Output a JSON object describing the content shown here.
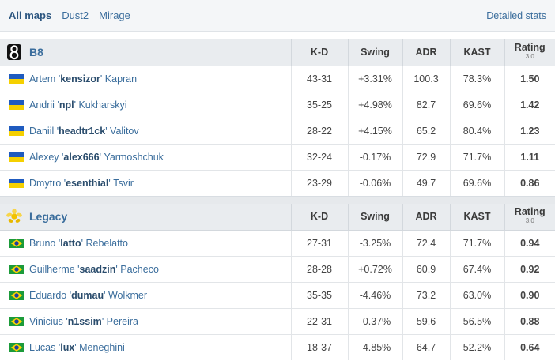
{
  "tabs": [
    {
      "label": "All maps",
      "active": true
    },
    {
      "label": "Dust2",
      "active": false
    },
    {
      "label": "Mirage",
      "active": false
    }
  ],
  "detailed_stats_label": "Detailed stats",
  "columns": {
    "kd": "K-D",
    "swing": "Swing",
    "adr": "ADR",
    "kast": "KAST",
    "rating": "Rating",
    "rating_version": "3.0"
  },
  "colors": {
    "positive": "#43a047",
    "negative": "#e03c3c",
    "link": "#3a6d9c",
    "rating_good": "#43a047",
    "rating_bad": "#d32f2f"
  },
  "teams": [
    {
      "name": "B8",
      "logo_icon": "b8-logo-icon",
      "players": [
        {
          "first": "Artem",
          "nick": "kensizor",
          "last": "Kapran",
          "flag": "ukraine-flag-icon",
          "kd": "43-31",
          "swing": "+3.31%",
          "swing_sign": "pos",
          "adr": "100.3",
          "kast": "78.3%",
          "rating": "1.50",
          "rating_class": "good"
        },
        {
          "first": "Andrii",
          "nick": "npl",
          "last": "Kukharskyi",
          "flag": "ukraine-flag-icon",
          "kd": "35-25",
          "swing": "+4.98%",
          "swing_sign": "pos",
          "adr": "82.7",
          "kast": "69.6%",
          "rating": "1.42",
          "rating_class": "good"
        },
        {
          "first": "Daniil",
          "nick": "headtr1ck",
          "last": "Valitov",
          "flag": "ukraine-flag-icon",
          "kd": "28-22",
          "swing": "+4.15%",
          "swing_sign": "pos",
          "adr": "65.2",
          "kast": "80.4%",
          "rating": "1.23",
          "rating_class": "good"
        },
        {
          "first": "Alexey",
          "nick": "alex666",
          "last": "Yarmoshchuk",
          "flag": "ukraine-flag-icon",
          "kd": "32-24",
          "swing": "-0.17%",
          "swing_sign": "neu",
          "adr": "72.9",
          "kast": "71.7%",
          "rating": "1.11",
          "rating_class": "good"
        },
        {
          "first": "Dmytro",
          "nick": "esenthial",
          "last": "Tsvir",
          "flag": "ukraine-flag-icon",
          "kd": "23-29",
          "swing": "-0.06%",
          "swing_sign": "neu",
          "adr": "49.7",
          "kast": "69.6%",
          "rating": "0.86",
          "rating_class": "bad"
        }
      ]
    },
    {
      "name": "Legacy",
      "logo_icon": "legacy-logo-icon",
      "players": [
        {
          "first": "Bruno",
          "nick": "latto",
          "last": "Rebelatto",
          "flag": "brazil-flag-icon",
          "kd": "27-31",
          "swing": "-3.25%",
          "swing_sign": "neg",
          "adr": "72.4",
          "kast": "71.7%",
          "rating": "0.94",
          "rating_class": "bad"
        },
        {
          "first": "Guilherme",
          "nick": "saadzin",
          "last": "Pacheco",
          "flag": "brazil-flag-icon",
          "kd": "28-28",
          "swing": "+0.72%",
          "swing_sign": "neu",
          "adr": "60.9",
          "kast": "67.4%",
          "rating": "0.92",
          "rating_class": "bad"
        },
        {
          "first": "Eduardo",
          "nick": "dumau",
          "last": "Wolkmer",
          "flag": "brazil-flag-icon",
          "kd": "35-35",
          "swing": "-4.46%",
          "swing_sign": "neg",
          "adr": "73.2",
          "kast": "63.0%",
          "rating": "0.90",
          "rating_class": "bad"
        },
        {
          "first": "Vinicius",
          "nick": "n1ssim",
          "last": "Pereira",
          "flag": "brazil-flag-icon",
          "kd": "22-31",
          "swing": "-0.37%",
          "swing_sign": "neu",
          "adr": "59.6",
          "kast": "56.5%",
          "rating": "0.88",
          "rating_class": "bad"
        },
        {
          "first": "Lucas",
          "nick": "lux",
          "last": "Meneghini",
          "flag": "brazil-flag-icon",
          "kd": "18-37",
          "swing": "-4.85%",
          "swing_sign": "neg",
          "adr": "64.7",
          "kast": "52.2%",
          "rating": "0.64",
          "rating_class": "bad"
        }
      ]
    }
  ]
}
